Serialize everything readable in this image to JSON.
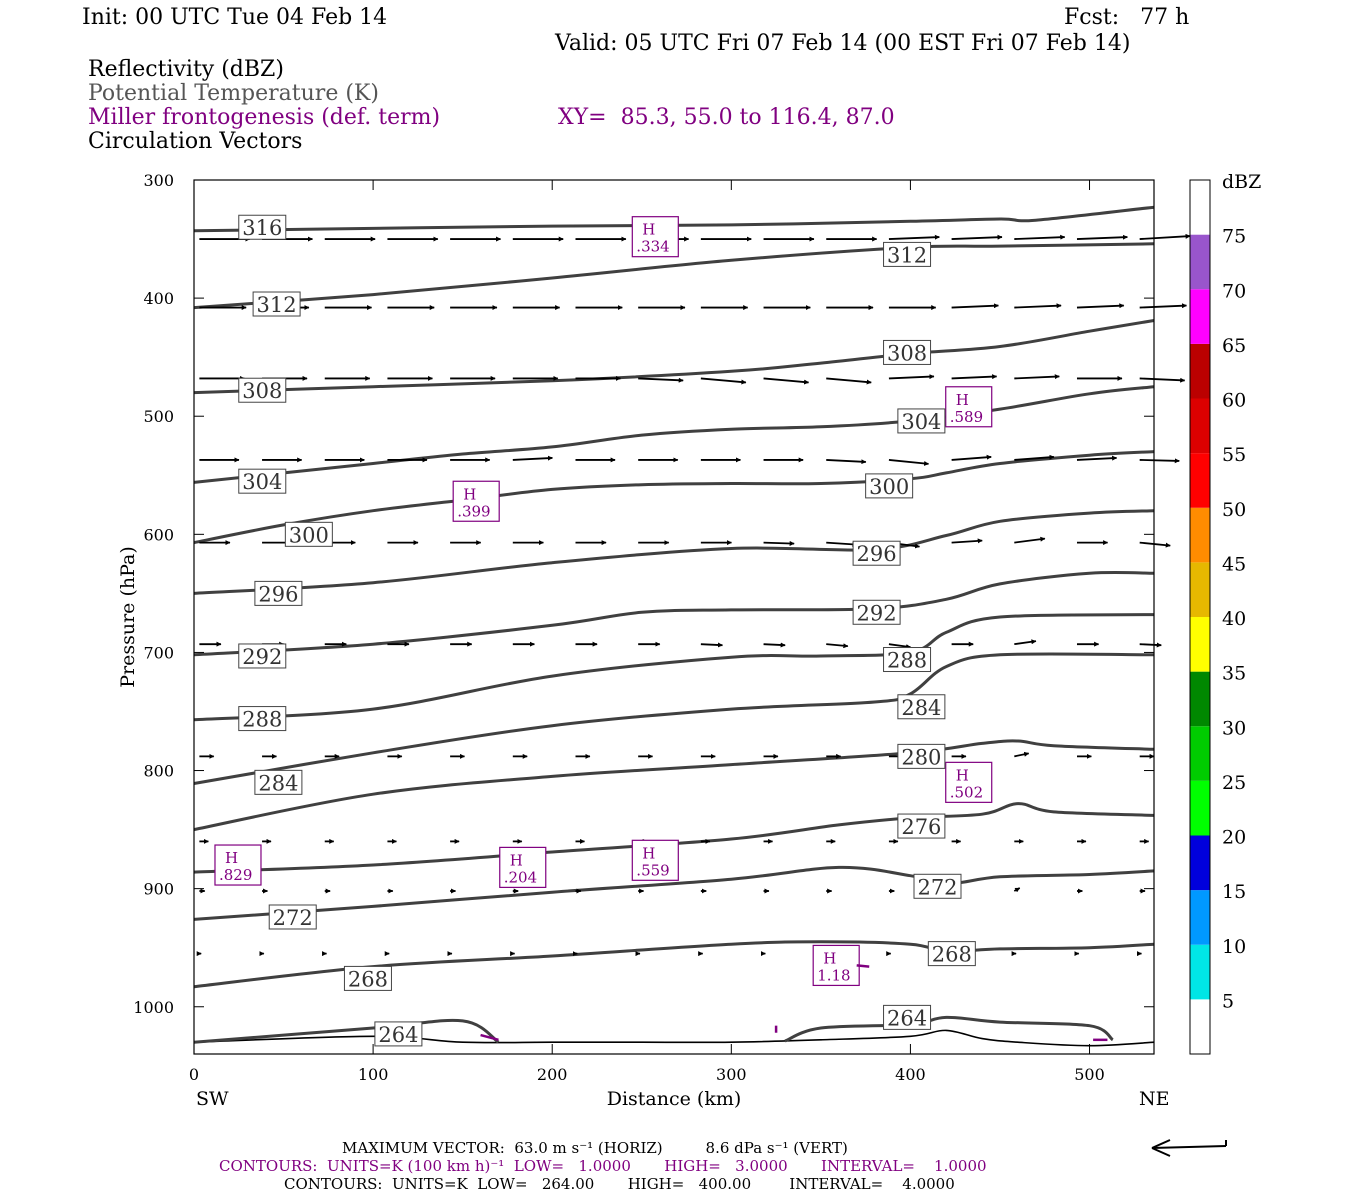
{
  "header": {
    "init": "Init: 00 UTC Tue 04 Feb 14",
    "fcst": "Fcst:   77 h",
    "valid": "Valid: 05 UTC Fri 07 Feb 14 (00 EST Fri 07 Feb 14)",
    "fields": [
      "Reflectivity (dBZ)",
      "Potential Temperature (K)",
      "Miller frontogenesis (def. term)",
      "Circulation Vectors"
    ],
    "xy": "XY=  85.3, 55.0 to 116.4, 87.0"
  },
  "colors": {
    "theta": "#404040",
    "frontogenesis": "#800080",
    "vectors": "#000000"
  },
  "chart_data": {
    "type": "line",
    "title": "",
    "xlabel": "Distance (km)",
    "ylabel": "Pressure (hPa)",
    "xlim": [
      0,
      536
    ],
    "ylim": [
      1040,
      300
    ],
    "y_scale": "linear, inverted",
    "x_ticks": [
      0,
      100,
      200,
      300,
      400,
      500
    ],
    "y_ticks": [
      300,
      400,
      500,
      600,
      700,
      800,
      900,
      1000
    ],
    "x_end_labels": {
      "left": "SW",
      "right": "NE"
    },
    "isentropes": [
      {
        "label": "316",
        "x": [
          0,
          100,
          200,
          300,
          400,
          450,
          470,
          536
        ],
        "y": [
          343,
          341,
          339,
          338,
          335,
          333,
          334,
          323
        ],
        "label_at": [
          25,
          340
        ]
      },
      {
        "label": "312",
        "x": [
          0,
          100,
          200,
          300,
          400,
          450,
          536
        ],
        "y": [
          408,
          397,
          383,
          368,
          357,
          356,
          354
        ],
        "label_at": [
          385,
          363
        ]
      },
      {
        "label": "312",
        "x": [
          0,
          100,
          200,
          300,
          400,
          450,
          536
        ],
        "y": [
          408,
          397,
          383,
          368,
          357,
          356,
          354
        ],
        "label_at": [
          33,
          405
        ]
      },
      {
        "label": "308",
        "x": [
          0,
          100,
          200,
          300,
          350,
          400,
          450,
          500,
          536
        ],
        "y": [
          480,
          475,
          470,
          462,
          455,
          447,
          441,
          428,
          419
        ],
        "label_at": [
          385,
          446
        ]
      },
      {
        "label": "308",
        "x": [
          0,
          100,
          200,
          300,
          350,
          400,
          450,
          500,
          536
        ],
        "y": [
          480,
          475,
          470,
          462,
          455,
          447,
          441,
          428,
          419
        ],
        "label_at": [
          25,
          478
        ]
      },
      {
        "label": "304",
        "x": [
          0,
          100,
          150,
          200,
          250,
          300,
          350,
          400,
          450,
          500,
          536
        ],
        "y": [
          556,
          540,
          532,
          526,
          516,
          511,
          509,
          504,
          494,
          481,
          475
        ],
        "label_at": [
          393,
          504
        ]
      },
      {
        "label": "304",
        "x": [
          0,
          100,
          150,
          200,
          250,
          300,
          350,
          400,
          450,
          500,
          536
        ],
        "y": [
          556,
          540,
          532,
          526,
          516,
          511,
          509,
          504,
          494,
          481,
          475
        ],
        "label_at": [
          25,
          555
        ]
      },
      {
        "label": "300",
        "x": [
          0,
          50,
          100,
          150,
          200,
          250,
          300,
          350,
          400,
          420,
          450,
          500,
          536
        ],
        "y": [
          607,
          592,
          580,
          571,
          562,
          558,
          557,
          557,
          553,
          548,
          540,
          533,
          530
        ],
        "label_at": [
          375,
          559
        ]
      },
      {
        "label": "300",
        "x": [
          0,
          50,
          100,
          150,
          200,
          250,
          300,
          350,
          400,
          420,
          450,
          500,
          536
        ],
        "y": [
          607,
          592,
          580,
          571,
          562,
          558,
          557,
          557,
          553,
          548,
          540,
          533,
          530
        ],
        "label_at": [
          51,
          600
        ]
      },
      {
        "label": "296",
        "x": [
          0,
          100,
          200,
          300,
          380,
          420,
          450,
          500,
          536
        ],
        "y": [
          650,
          641,
          624,
          612,
          613,
          601,
          589,
          582,
          580
        ],
        "label_at": [
          368,
          616
        ]
      },
      {
        "label": "296",
        "x": [
          0,
          100,
          200,
          300,
          380,
          420,
          450,
          500,
          536
        ],
        "y": [
          650,
          641,
          624,
          612,
          613,
          601,
          589,
          582,
          580
        ],
        "label_at": [
          34,
          650
        ]
      },
      {
        "label": "292",
        "x": [
          0,
          100,
          200,
          250,
          300,
          380,
          420,
          450,
          500,
          536
        ],
        "y": [
          702,
          693,
          677,
          666,
          664,
          663,
          655,
          642,
          633,
          633
        ],
        "label_at": [
          368,
          666
        ]
      },
      {
        "label": "292",
        "x": [
          0,
          100,
          200,
          250,
          300,
          380,
          420,
          450,
          500,
          536
        ],
        "y": [
          702,
          693,
          677,
          666,
          664,
          663,
          655,
          642,
          633,
          633
        ],
        "label_at": [
          25,
          703
        ]
      },
      {
        "label": "288",
        "x": [
          0,
          100,
          200,
          300,
          350,
          400,
          420,
          450,
          536
        ],
        "y": [
          757,
          748,
          720,
          704,
          703,
          700,
          683,
          670,
          668
        ],
        "label_at": [
          385,
          706
        ]
      },
      {
        "label": "288",
        "x": [
          0,
          100,
          200,
          300,
          350,
          400,
          420,
          450,
          536
        ],
        "y": [
          757,
          748,
          720,
          704,
          703,
          700,
          683,
          670,
          668
        ],
        "label_at": [
          25,
          756
        ]
      },
      {
        "label": "284",
        "x": [
          0,
          100,
          200,
          300,
          380,
          400,
          420,
          450,
          536
        ],
        "y": [
          811,
          785,
          762,
          748,
          742,
          735,
          712,
          702,
          702
        ],
        "label_at": [
          393,
          746
        ]
      },
      {
        "label": "284",
        "x": [
          0,
          100,
          200,
          300,
          380,
          400,
          420,
          450,
          536
        ],
        "y": [
          811,
          785,
          762,
          748,
          742,
          735,
          712,
          702,
          702
        ],
        "label_at": [
          34,
          810
        ]
      },
      {
        "label": "280",
        "x": [
          0,
          100,
          200,
          300,
          400,
          440,
          460,
          480,
          536
        ],
        "y": [
          850,
          820,
          805,
          795,
          785,
          777,
          775,
          779,
          782
        ],
        "label_at": [
          393,
          788
        ]
      },
      {
        "label": "276",
        "x": [
          0,
          100,
          200,
          300,
          360,
          400,
          440,
          460,
          480,
          536
        ],
        "y": [
          886,
          880,
          869,
          858,
          846,
          840,
          837,
          828,
          835,
          838
        ],
        "label_at": [
          393,
          847
        ]
      },
      {
        "label": "272",
        "x": [
          0,
          100,
          200,
          300,
          360,
          400,
          420,
          450,
          500,
          536
        ],
        "y": [
          926,
          915,
          903,
          892,
          882,
          889,
          896,
          890,
          888,
          885
        ],
        "label_at": [
          402,
          898
        ]
      },
      {
        "label": "272",
        "x": [
          0,
          100,
          200,
          300,
          360,
          400,
          420,
          450,
          500,
          536
        ],
        "y": [
          926,
          915,
          903,
          892,
          882,
          889,
          896,
          890,
          888,
          885
        ],
        "label_at": [
          42,
          924
        ]
      },
      {
        "label": "268",
        "x": [
          0,
          100,
          200,
          300,
          350,
          400,
          420,
          450,
          500,
          536
        ],
        "y": [
          983,
          966,
          957,
          947,
          945,
          947,
          953,
          951,
          950,
          947
        ],
        "label_at": [
          410,
          955
        ]
      },
      {
        "label": "268",
        "x": [
          0,
          100,
          200,
          300,
          350,
          400,
          420,
          450,
          500,
          536
        ],
        "y": [
          983,
          966,
          957,
          947,
          945,
          947,
          953,
          951,
          950,
          947
        ],
        "label_at": [
          84,
          976
        ]
      },
      {
        "label": "264",
        "x": [
          0,
          100,
          150,
          170
        ],
        "y": [
          1030,
          1018,
          1012,
          1030
        ],
        "label_at": [
          101,
          1023
        ]
      },
      {
        "label": "264",
        "x": [
          330,
          350,
          400,
          420,
          450,
          500,
          513
        ],
        "y": [
          1029,
          1018,
          1015,
          1009,
          1013,
          1016,
          1028
        ],
        "label_at": [
          385,
          1009
        ]
      }
    ],
    "terrain": {
      "x": [
        0,
        100,
        150,
        200,
        250,
        300,
        350,
        400,
        420,
        440,
        460,
        500,
        536
      ],
      "y": [
        1030,
        1025,
        1030,
        1030,
        1030,
        1030,
        1028,
        1025,
        1020,
        1027,
        1030,
        1033,
        1030
      ]
    },
    "frontogenesis_maxima": [
      {
        "label": "H",
        "value": ".334",
        "x": 257,
        "y": 348
      },
      {
        "label": "H",
        "value": ".589",
        "x": 432,
        "y": 492
      },
      {
        "label": "H",
        "value": ".399",
        "x": 157,
        "y": 572
      },
      {
        "label": "H",
        "value": ".502",
        "x": 432,
        "y": 810
      },
      {
        "label": "H",
        "value": ".829",
        "x": 24,
        "y": 880
      },
      {
        "label": "H",
        "value": ".204",
        "x": 183,
        "y": 882
      },
      {
        "label": "H",
        "value": ".559",
        "x": 257,
        "y": 876
      },
      {
        "label": "H",
        "value": "1.18",
        "x": 358,
        "y": 965
      }
    ],
    "circulation_vectors": {
      "rows": [
        {
          "p": 350,
          "len": 28,
          "dp": [
            0,
            0,
            0,
            0,
            0,
            0,
            0,
            0,
            0,
            0,
            0,
            -2,
            -2,
            -2,
            -2,
            -3
          ]
        },
        {
          "p": 408,
          "len": 26,
          "dp": [
            0,
            0,
            0,
            0,
            0,
            0,
            0,
            0,
            0,
            0,
            0,
            0,
            -2,
            -2,
            -2,
            -2
          ]
        },
        {
          "p": 468,
          "len": 25,
          "dp": [
            0,
            0,
            0,
            0,
            0,
            0,
            0,
            2,
            4,
            4,
            4,
            -2,
            -2,
            -2,
            0,
            2
          ]
        },
        {
          "p": 537,
          "len": 22,
          "dp": [
            0,
            0,
            0,
            0,
            0,
            -2,
            0,
            0,
            0,
            0,
            2,
            4,
            -3,
            -3,
            -2,
            1
          ]
        },
        {
          "p": 607,
          "len": 17,
          "dp": [
            0,
            0,
            0,
            0,
            0,
            0,
            0,
            0,
            0,
            1,
            2,
            4,
            -2,
            -4,
            0,
            3
          ]
        },
        {
          "p": 693,
          "len": 12,
          "dp": [
            0,
            0,
            0,
            0,
            0,
            0,
            0,
            0,
            1,
            1,
            2,
            3,
            0,
            -3,
            0,
            1
          ]
        },
        {
          "p": 788,
          "len": 8,
          "dp": [
            0,
            0,
            0,
            0,
            0,
            0,
            0,
            0,
            0,
            0,
            0,
            0,
            0,
            -3,
            0,
            0
          ]
        },
        {
          "p": 860,
          "len": 5,
          "dp": [
            0,
            0,
            0,
            0,
            0,
            0,
            0,
            0,
            0,
            0,
            0,
            0,
            0,
            0,
            0,
            0
          ]
        },
        {
          "p": 902,
          "len": 3,
          "dp": [
            0,
            0,
            0,
            0,
            0,
            0,
            0,
            0,
            0,
            0,
            0,
            0,
            0,
            -3,
            0,
            0
          ]
        },
        {
          "p": 955,
          "len": 1,
          "dp": [
            0,
            0,
            0,
            0,
            0,
            0,
            0,
            0,
            0,
            0,
            0,
            0,
            0,
            0,
            0,
            0
          ]
        }
      ]
    }
  },
  "colorbar": {
    "unit": "dBZ",
    "levels": [
      "5",
      "10",
      "15",
      "20",
      "25",
      "30",
      "35",
      "40",
      "45",
      "50",
      "55",
      "60",
      "65",
      "70",
      "75"
    ],
    "colors": [
      "#ffffff",
      "#00e6e6",
      "#0099ff",
      "#0000dd",
      "#00ff00",
      "#00cc00",
      "#008800",
      "#ffff00",
      "#e6b800",
      "#ff8c00",
      "#ff0000",
      "#dd0000",
      "#bb0000",
      "#ff00ff",
      "#9955cc",
      "#ffffff"
    ]
  },
  "footer": {
    "max_vector": "MAXIMUM VECTOR:  63.0 m s⁻¹ (HORIZ)         8.6 dPa s⁻¹ (VERT)",
    "contours_fg": "CONTOURS:  UNITS=K (100 km h)⁻¹  LOW=   1.0000       HIGH=   3.0000       INTERVAL=    1.0000",
    "contours_theta": "CONTOURS:  UNITS=K  LOW=   264.00       HIGH=   400.00        INTERVAL=    4.0000"
  }
}
